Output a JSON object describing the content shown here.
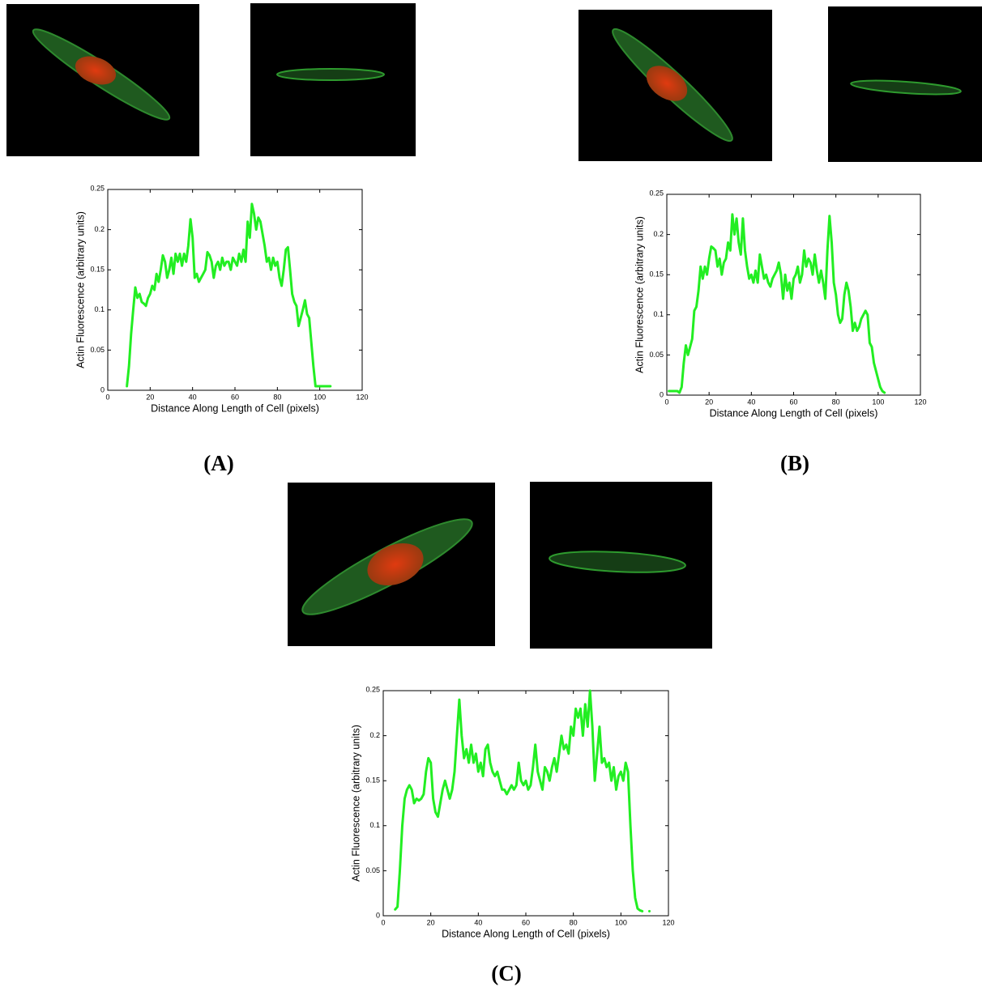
{
  "panel_labels": [
    "(A)",
    "(B)",
    "(C)"
  ],
  "chart_data": [
    {
      "type": "line",
      "x_label": "Distance Along Length of Cell (pixels)",
      "y_label": "Actin Fluorescence (arbitrary units)",
      "x": [
        9,
        10,
        11,
        12,
        13,
        14,
        15,
        16,
        17,
        18,
        19,
        20,
        21,
        22,
        23,
        24,
        25,
        26,
        27,
        28,
        29,
        30,
        31,
        32,
        33,
        34,
        35,
        36,
        37,
        38,
        39,
        40,
        41,
        42,
        43,
        44,
        45,
        46,
        47,
        48,
        49,
        50,
        51,
        52,
        53,
        54,
        55,
        56,
        57,
        58,
        59,
        60,
        61,
        62,
        63,
        64,
        65,
        66,
        67,
        68,
        69,
        70,
        71,
        72,
        73,
        74,
        75,
        76,
        77,
        78,
        79,
        80,
        81,
        82,
        83,
        84,
        85,
        86,
        87,
        88,
        89,
        90,
        91,
        92,
        93,
        94,
        95,
        96,
        97,
        98,
        99,
        100,
        105
      ],
      "series": [
        {
          "color": "#22ee22",
          "values": [
            0.005,
            0.03,
            0.07,
            0.1,
            0.128,
            0.115,
            0.12,
            0.11,
            0.108,
            0.105,
            0.115,
            0.12,
            0.13,
            0.125,
            0.145,
            0.135,
            0.15,
            0.168,
            0.16,
            0.14,
            0.15,
            0.165,
            0.145,
            0.17,
            0.16,
            0.17,
            0.155,
            0.17,
            0.16,
            0.18,
            0.213,
            0.19,
            0.14,
            0.145,
            0.135,
            0.14,
            0.145,
            0.15,
            0.172,
            0.168,
            0.16,
            0.14,
            0.155,
            0.16,
            0.15,
            0.165,
            0.155,
            0.16,
            0.16,
            0.15,
            0.165,
            0.16,
            0.155,
            0.17,
            0.16,
            0.175,
            0.16,
            0.21,
            0.19,
            0.232,
            0.22,
            0.2,
            0.215,
            0.21,
            0.195,
            0.18,
            0.16,
            0.165,
            0.15,
            0.165,
            0.155,
            0.16,
            0.14,
            0.13,
            0.15,
            0.175,
            0.178,
            0.15,
            0.12,
            0.11,
            0.105,
            0.08,
            0.09,
            0.1,
            0.112,
            0.095,
            0.09,
            0.06,
            0.03,
            0.005,
            0.005,
            0.005,
            0.005
          ]
        }
      ],
      "xlim": [
        0,
        120
      ],
      "ylim": [
        0,
        0.25
      ],
      "xticks": [
        0,
        20,
        40,
        60,
        80,
        100,
        120
      ],
      "yticks": [
        0,
        0.05,
        0.1,
        0.15,
        0.2,
        0.25
      ]
    },
    {
      "type": "line",
      "x_label": "Distance Along Length of Cell (pixels)",
      "y_label": "Actin Fluorescence (arbitrary units)",
      "x": [
        1,
        2,
        3,
        4,
        5,
        6,
        7,
        8,
        9,
        10,
        11,
        12,
        13,
        14,
        15,
        16,
        17,
        18,
        19,
        20,
        21,
        22,
        23,
        24,
        25,
        26,
        27,
        28,
        29,
        30,
        31,
        32,
        33,
        34,
        35,
        36,
        37,
        38,
        39,
        40,
        41,
        42,
        43,
        44,
        45,
        46,
        47,
        48,
        49,
        50,
        51,
        52,
        53,
        54,
        55,
        56,
        57,
        58,
        59,
        60,
        61,
        62,
        63,
        64,
        65,
        66,
        67,
        68,
        69,
        70,
        71,
        72,
        73,
        74,
        75,
        76,
        77,
        78,
        79,
        80,
        81,
        82,
        83,
        84,
        85,
        86,
        87,
        88,
        89,
        90,
        91,
        92,
        93,
        94,
        95,
        96,
        97,
        98,
        99,
        100,
        101,
        102,
        103
      ],
      "series": [
        {
          "color": "#22ee22",
          "values": [
            0.005,
            0.005,
            0.005,
            0.005,
            0.005,
            0.003,
            0.01,
            0.04,
            0.062,
            0.05,
            0.06,
            0.07,
            0.105,
            0.11,
            0.13,
            0.16,
            0.145,
            0.16,
            0.15,
            0.17,
            0.185,
            0.183,
            0.18,
            0.16,
            0.17,
            0.15,
            0.165,
            0.17,
            0.19,
            0.18,
            0.225,
            0.2,
            0.22,
            0.19,
            0.175,
            0.22,
            0.18,
            0.16,
            0.145,
            0.15,
            0.14,
            0.155,
            0.14,
            0.175,
            0.16,
            0.145,
            0.15,
            0.14,
            0.135,
            0.145,
            0.15,
            0.155,
            0.165,
            0.15,
            0.12,
            0.15,
            0.13,
            0.14,
            0.12,
            0.145,
            0.15,
            0.16,
            0.14,
            0.15,
            0.18,
            0.16,
            0.17,
            0.165,
            0.15,
            0.175,
            0.155,
            0.14,
            0.155,
            0.14,
            0.12,
            0.18,
            0.223,
            0.19,
            0.14,
            0.125,
            0.1,
            0.09,
            0.095,
            0.125,
            0.14,
            0.13,
            0.11,
            0.08,
            0.09,
            0.08,
            0.085,
            0.095,
            0.1,
            0.105,
            0.1,
            0.065,
            0.06,
            0.04,
            0.03,
            0.02,
            0.01,
            0.005,
            0.003
          ]
        }
      ],
      "xlim": [
        0,
        120
      ],
      "ylim": [
        0,
        0.25
      ],
      "xticks": [
        0,
        20,
        40,
        60,
        80,
        100,
        120
      ],
      "yticks": [
        0,
        0.05,
        0.1,
        0.15,
        0.2,
        0.25
      ]
    },
    {
      "type": "line",
      "x_label": "Distance Along Length of Cell (pixels)",
      "y_label": "Actin Fluorescence (arbitrary units)",
      "x": [
        5,
        6,
        7,
        8,
        9,
        10,
        11,
        12,
        13,
        14,
        15,
        16,
        17,
        18,
        19,
        20,
        21,
        22,
        23,
        24,
        25,
        26,
        27,
        28,
        29,
        30,
        31,
        32,
        33,
        34,
        35,
        36,
        37,
        38,
        39,
        40,
        41,
        42,
        43,
        44,
        45,
        46,
        47,
        48,
        49,
        50,
        51,
        52,
        53,
        54,
        55,
        56,
        57,
        58,
        59,
        60,
        61,
        62,
        63,
        64,
        65,
        66,
        67,
        68,
        69,
        70,
        71,
        72,
        73,
        74,
        75,
        76,
        77,
        78,
        79,
        80,
        81,
        82,
        83,
        84,
        85,
        86,
        87,
        88,
        89,
        90,
        91,
        92,
        93,
        94,
        95,
        96,
        97,
        98,
        99,
        100,
        101,
        102,
        103,
        104,
        105,
        106,
        107,
        108,
        109,
        110,
        112
      ],
      "series": [
        {
          "color": "#22ee22",
          "values": [
            0.007,
            0.01,
            0.05,
            0.1,
            0.13,
            0.14,
            0.145,
            0.14,
            0.125,
            0.13,
            0.128,
            0.13,
            0.135,
            0.16,
            0.175,
            0.17,
            0.13,
            0.115,
            0.11,
            0.125,
            0.14,
            0.15,
            0.14,
            0.13,
            0.14,
            0.16,
            0.2,
            0.24,
            0.2,
            0.175,
            0.185,
            0.17,
            0.19,
            0.17,
            0.18,
            0.16,
            0.17,
            0.155,
            0.185,
            0.19,
            0.17,
            0.16,
            0.155,
            0.16,
            0.15,
            0.14,
            0.14,
            0.135,
            0.14,
            0.145,
            0.14,
            0.145,
            0.17,
            0.15,
            0.145,
            0.15,
            0.14,
            0.145,
            0.165,
            0.19,
            0.16,
            0.15,
            0.14,
            0.165,
            0.16,
            0.15,
            0.165,
            0.175,
            0.16,
            0.18,
            0.2,
            0.185,
            0.19,
            0.18,
            0.21,
            0.2,
            0.23,
            0.22,
            0.23,
            0.2,
            0.235,
            0.21,
            0.25,
            0.21,
            0.15,
            0.18,
            0.21,
            0.17,
            0.175,
            0.165,
            0.17,
            0.15,
            0.165,
            0.14,
            0.155,
            0.16,
            0.15,
            0.17,
            0.16,
            0.1,
            0.05,
            0.02,
            0.008,
            0.006,
            0.005,
            null,
            0.005
          ]
        }
      ],
      "xlim": [
        0,
        120
      ],
      "ylim": [
        0,
        0.25
      ],
      "xticks": [
        0,
        20,
        40,
        60,
        80,
        100,
        120
      ],
      "yticks": [
        0,
        0.05,
        0.1,
        0.15,
        0.2,
        0.25
      ]
    }
  ]
}
